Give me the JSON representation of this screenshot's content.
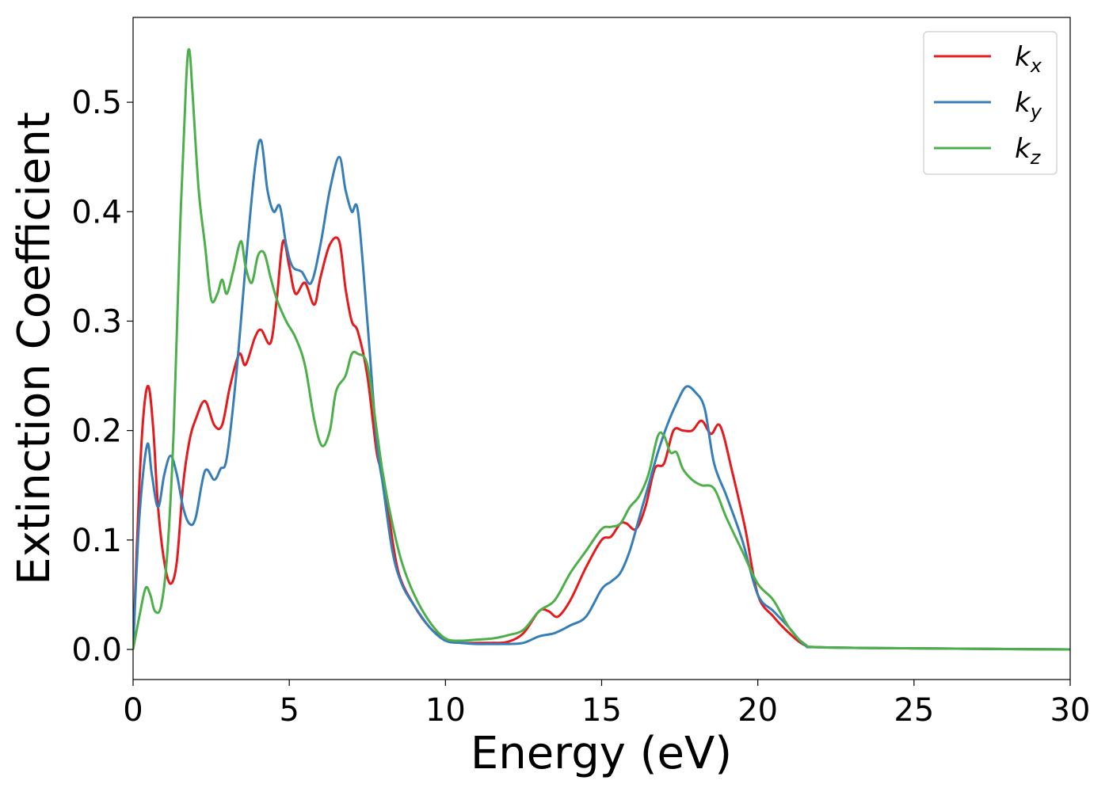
{
  "chart_data": {
    "type": "line",
    "xlabel": "Energy (eV)",
    "ylabel": "Extinction Coefficient",
    "xlim": [
      0,
      30
    ],
    "ylim": [
      -0.0275,
      0.5775
    ],
    "xticks": [
      0,
      5,
      10,
      15,
      20,
      25,
      30
    ],
    "xtick_labels": [
      "0",
      "5",
      "10",
      "15",
      "20",
      "25",
      "30"
    ],
    "yticks": [
      0.0,
      0.1,
      0.2,
      0.3,
      0.4,
      0.5
    ],
    "ytick_labels": [
      "0.0",
      "0.1",
      "0.2",
      "0.3",
      "0.4",
      "0.5"
    ],
    "grid": false,
    "legend_position": "top-right",
    "series": [
      {
        "name": "k_x",
        "label_main": "k",
        "label_sub": "x",
        "color": "#e41a1c",
        "x": [
          0,
          0.2,
          0.35,
          0.5,
          0.65,
          0.8,
          1.0,
          1.2,
          1.4,
          1.6,
          1.8,
          2.0,
          2.3,
          2.6,
          2.85,
          3.1,
          3.4,
          3.6,
          3.9,
          4.1,
          4.4,
          4.6,
          4.8,
          5.0,
          5.2,
          5.5,
          5.8,
          6.0,
          6.3,
          6.6,
          6.8,
          7.0,
          7.2,
          7.5,
          7.8,
          8.0,
          8.2,
          8.5,
          9.0,
          9.5,
          10.0,
          10.5,
          11.0,
          11.5,
          12.0,
          12.5,
          13.0,
          13.3,
          13.6,
          14.0,
          14.5,
          15.0,
          15.3,
          15.6,
          15.8,
          16.1,
          16.4,
          16.7,
          17.0,
          17.3,
          17.6,
          17.9,
          18.2,
          18.5,
          18.8,
          19.2,
          19.6,
          20.0,
          20.5,
          21.0,
          21.5,
          22,
          25,
          30
        ],
        "y": [
          0.0,
          0.15,
          0.22,
          0.24,
          0.2,
          0.13,
          0.08,
          0.06,
          0.08,
          0.15,
          0.19,
          0.21,
          0.227,
          0.205,
          0.205,
          0.24,
          0.27,
          0.26,
          0.285,
          0.292,
          0.28,
          0.32,
          0.373,
          0.35,
          0.325,
          0.335,
          0.315,
          0.34,
          0.37,
          0.373,
          0.33,
          0.3,
          0.29,
          0.25,
          0.18,
          0.16,
          0.12,
          0.07,
          0.04,
          0.02,
          0.009,
          0.006,
          0.006,
          0.006,
          0.007,
          0.015,
          0.035,
          0.035,
          0.03,
          0.045,
          0.075,
          0.1,
          0.103,
          0.115,
          0.115,
          0.11,
          0.13,
          0.165,
          0.17,
          0.2,
          0.2,
          0.2,
          0.209,
          0.197,
          0.204,
          0.16,
          0.11,
          0.05,
          0.03,
          0.015,
          0.004,
          0.002,
          0.001,
          0.0
        ]
      },
      {
        "name": "k_y",
        "label_main": "k",
        "label_sub": "y",
        "color": "#377eb8",
        "x": [
          0,
          0.2,
          0.45,
          0.6,
          0.8,
          1.0,
          1.2,
          1.4,
          1.6,
          1.8,
          2.0,
          2.3,
          2.6,
          2.8,
          3.0,
          3.3,
          3.6,
          3.9,
          4.1,
          4.3,
          4.5,
          4.7,
          4.9,
          5.1,
          5.4,
          5.7,
          6.0,
          6.3,
          6.6,
          6.8,
          7.0,
          7.2,
          7.5,
          7.8,
          8.0,
          8.3,
          8.6,
          9.0,
          9.5,
          10.0,
          10.5,
          11.0,
          11.5,
          12.0,
          12.5,
          13.0,
          13.5,
          14.0,
          14.5,
          15.0,
          15.3,
          15.6,
          15.9,
          16.2,
          16.5,
          16.8,
          17.1,
          17.4,
          17.7,
          18.0,
          18.3,
          18.6,
          19.0,
          19.5,
          20.0,
          20.5,
          21.0,
          21.5,
          22,
          25,
          30
        ],
        "y": [
          0.0,
          0.12,
          0.187,
          0.16,
          0.13,
          0.16,
          0.177,
          0.16,
          0.13,
          0.115,
          0.12,
          0.163,
          0.155,
          0.165,
          0.175,
          0.25,
          0.35,
          0.44,
          0.465,
          0.42,
          0.4,
          0.405,
          0.37,
          0.35,
          0.345,
          0.335,
          0.37,
          0.42,
          0.45,
          0.42,
          0.4,
          0.4,
          0.3,
          0.19,
          0.15,
          0.09,
          0.06,
          0.04,
          0.02,
          0.008,
          0.006,
          0.005,
          0.005,
          0.005,
          0.006,
          0.012,
          0.015,
          0.022,
          0.03,
          0.055,
          0.062,
          0.07,
          0.09,
          0.12,
          0.15,
          0.18,
          0.205,
          0.225,
          0.24,
          0.235,
          0.22,
          0.17,
          0.14,
          0.1,
          0.05,
          0.035,
          0.02,
          0.004,
          0.002,
          0.001,
          0.0
        ]
      },
      {
        "name": "k_z",
        "label_main": "k",
        "label_sub": "z",
        "color": "#4daf4a",
        "x": [
          0,
          0.2,
          0.4,
          0.55,
          0.7,
          0.9,
          1.1,
          1.3,
          1.5,
          1.7,
          1.8,
          1.9,
          2.1,
          2.3,
          2.5,
          2.7,
          2.85,
          3.0,
          3.2,
          3.45,
          3.6,
          3.8,
          4.0,
          4.2,
          4.4,
          4.6,
          4.9,
          5.2,
          5.5,
          5.8,
          6.05,
          6.3,
          6.5,
          6.8,
          7.0,
          7.2,
          7.5,
          7.8,
          8.0,
          8.3,
          8.6,
          9.0,
          9.5,
          10.0,
          10.5,
          11.0,
          11.5,
          12.0,
          12.5,
          13.0,
          13.5,
          14.0,
          14.5,
          15.0,
          15.3,
          15.6,
          15.9,
          16.2,
          16.5,
          16.8,
          17.0,
          17.2,
          17.4,
          17.6,
          17.9,
          18.2,
          18.6,
          19.0,
          19.5,
          20.0,
          20.5,
          21.0,
          21.5,
          22,
          25,
          30
        ],
        "y": [
          0.0,
          0.03,
          0.056,
          0.05,
          0.035,
          0.04,
          0.09,
          0.2,
          0.38,
          0.52,
          0.548,
          0.51,
          0.42,
          0.37,
          0.32,
          0.325,
          0.338,
          0.325,
          0.345,
          0.373,
          0.35,
          0.335,
          0.36,
          0.362,
          0.34,
          0.32,
          0.3,
          0.285,
          0.26,
          0.21,
          0.186,
          0.2,
          0.236,
          0.25,
          0.27,
          0.27,
          0.26,
          0.2,
          0.16,
          0.115,
          0.08,
          0.05,
          0.025,
          0.01,
          0.008,
          0.009,
          0.01,
          0.013,
          0.018,
          0.035,
          0.045,
          0.07,
          0.09,
          0.11,
          0.112,
          0.115,
          0.13,
          0.14,
          0.16,
          0.195,
          0.195,
          0.18,
          0.18,
          0.165,
          0.155,
          0.15,
          0.147,
          0.12,
          0.09,
          0.06,
          0.045,
          0.02,
          0.005,
          0.002,
          0.001,
          0.0
        ]
      }
    ]
  }
}
